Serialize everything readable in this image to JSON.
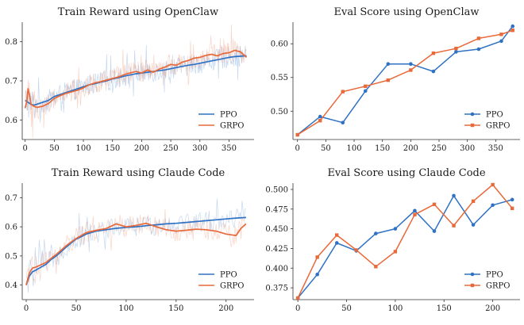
{
  "colors": {
    "PPO": "#2f72c4",
    "GRPO": "#e8693a"
  },
  "chart_data": [
    {
      "type": "line",
      "title": "Train Reward using OpenClaw",
      "xlim": [
        -5,
        393
      ],
      "ylim": [
        0.55,
        0.85
      ],
      "xticks": [
        0,
        50,
        100,
        150,
        200,
        250,
        300,
        350
      ],
      "yticks": [
        0.6,
        0.7,
        0.8
      ],
      "ytick_labels": [
        "0.6",
        "0.7",
        "0.8"
      ],
      "raw_noise": true,
      "legend": "bottom-right",
      "grid": false,
      "series": [
        {
          "name": "PPO",
          "marker": false,
          "x": [
            0,
            5,
            10,
            15,
            20,
            30,
            40,
            50,
            60,
            70,
            80,
            90,
            100,
            110,
            120,
            130,
            140,
            150,
            160,
            170,
            180,
            190,
            200,
            210,
            220,
            230,
            240,
            250,
            260,
            270,
            280,
            290,
            300,
            310,
            320,
            330,
            340,
            350,
            360,
            370,
            380
          ],
          "y": [
            0.65,
            0.645,
            0.64,
            0.638,
            0.64,
            0.645,
            0.65,
            0.66,
            0.665,
            0.67,
            0.675,
            0.68,
            0.685,
            0.69,
            0.693,
            0.697,
            0.7,
            0.705,
            0.708,
            0.712,
            0.715,
            0.718,
            0.72,
            0.722,
            0.724,
            0.726,
            0.728,
            0.731,
            0.734,
            0.737,
            0.74,
            0.742,
            0.745,
            0.748,
            0.751,
            0.754,
            0.757,
            0.76,
            0.762,
            0.763,
            0.764
          ]
        },
        {
          "name": "GRPO",
          "marker": false,
          "x": [
            0,
            3,
            5,
            8,
            10,
            15,
            20,
            30,
            40,
            50,
            60,
            70,
            80,
            90,
            100,
            110,
            120,
            130,
            140,
            150,
            160,
            170,
            180,
            190,
            200,
            210,
            220,
            230,
            240,
            250,
            260,
            270,
            280,
            290,
            300,
            310,
            320,
            330,
            340,
            350,
            360,
            370,
            380
          ],
          "y": [
            0.63,
            0.65,
            0.68,
            0.66,
            0.64,
            0.635,
            0.632,
            0.635,
            0.642,
            0.655,
            0.662,
            0.668,
            0.672,
            0.676,
            0.682,
            0.69,
            0.695,
            0.698,
            0.702,
            0.706,
            0.71,
            0.716,
            0.72,
            0.724,
            0.72,
            0.728,
            0.722,
            0.73,
            0.735,
            0.742,
            0.74,
            0.748,
            0.752,
            0.758,
            0.76,
            0.765,
            0.768,
            0.764,
            0.77,
            0.772,
            0.778,
            0.774,
            0.76
          ]
        }
      ]
    },
    {
      "type": "line",
      "title": "Eval Score using OpenClaw",
      "xlim": [
        -8,
        393
      ],
      "ylim": [
        0.458,
        0.632
      ],
      "xticks": [
        0,
        50,
        100,
        150,
        200,
        250,
        300,
        350
      ],
      "yticks": [
        0.5,
        0.55,
        0.6
      ],
      "ytick_labels": [
        "0.50",
        "0.55",
        "0.60"
      ],
      "raw_noise": false,
      "legend": "bottom-right",
      "grid": false,
      "series": [
        {
          "name": "PPO",
          "marker": "circle",
          "x": [
            0,
            40,
            80,
            120,
            160,
            200,
            240,
            280,
            320,
            360,
            380
          ],
          "y": [
            0.465,
            0.492,
            0.483,
            0.53,
            0.57,
            0.57,
            0.559,
            0.588,
            0.592,
            0.604,
            0.626
          ]
        },
        {
          "name": "GRPO",
          "marker": "square",
          "x": [
            0,
            40,
            80,
            120,
            160,
            200,
            240,
            280,
            320,
            360,
            380
          ],
          "y": [
            0.465,
            0.486,
            0.529,
            0.537,
            0.546,
            0.561,
            0.586,
            0.593,
            0.608,
            0.614,
            0.62
          ]
        }
      ]
    },
    {
      "type": "line",
      "title": "Train Reward using Claude Code",
      "xlim": [
        -4,
        228
      ],
      "ylim": [
        0.35,
        0.75
      ],
      "xticks": [
        0,
        50,
        100,
        150,
        200
      ],
      "yticks": [
        0.4,
        0.5,
        0.6,
        0.7
      ],
      "ytick_labels": [
        "0.4",
        "0.5",
        "0.6",
        "0.7"
      ],
      "raw_noise": true,
      "legend": "bottom-right",
      "grid": false,
      "series": [
        {
          "name": "PPO",
          "marker": false,
          "x": [
            0,
            3,
            6,
            10,
            15,
            20,
            25,
            30,
            35,
            40,
            45,
            50,
            55,
            60,
            70,
            80,
            90,
            100,
            110,
            120,
            130,
            140,
            150,
            160,
            170,
            180,
            190,
            200,
            210,
            220
          ],
          "y": [
            0.4,
            0.43,
            0.445,
            0.452,
            0.462,
            0.472,
            0.488,
            0.5,
            0.515,
            0.53,
            0.545,
            0.558,
            0.566,
            0.575,
            0.585,
            0.59,
            0.595,
            0.598,
            0.6,
            0.604,
            0.607,
            0.61,
            0.612,
            0.615,
            0.618,
            0.621,
            0.624,
            0.627,
            0.63,
            0.632
          ]
        },
        {
          "name": "GRPO",
          "marker": false,
          "x": [
            0,
            3,
            6,
            10,
            15,
            20,
            25,
            30,
            35,
            40,
            45,
            50,
            55,
            60,
            70,
            80,
            90,
            100,
            110,
            120,
            130,
            140,
            150,
            160,
            170,
            180,
            190,
            200,
            210,
            215,
            220
          ],
          "y": [
            0.4,
            0.44,
            0.458,
            0.462,
            0.47,
            0.478,
            0.492,
            0.505,
            0.52,
            0.535,
            0.548,
            0.56,
            0.57,
            0.58,
            0.588,
            0.594,
            0.61,
            0.6,
            0.605,
            0.612,
            0.6,
            0.59,
            0.585,
            0.588,
            0.592,
            0.59,
            0.585,
            0.575,
            0.57,
            0.595,
            0.61
          ]
        }
      ]
    },
    {
      "type": "line",
      "title": "Eval Score using Claude Code",
      "xlim": [
        -5,
        228
      ],
      "ylim": [
        0.36,
        0.508
      ],
      "xticks": [
        0,
        50,
        100,
        150,
        200
      ],
      "yticks": [
        0.375,
        0.4,
        0.425,
        0.45,
        0.475,
        0.5
      ],
      "ytick_labels": [
        "0.375",
        "0.400",
        "0.425",
        "0.450",
        "0.475",
        "0.500"
      ],
      "raw_noise": false,
      "legend": "bottom-right",
      "grid": false,
      "series": [
        {
          "name": "PPO",
          "marker": "circle",
          "x": [
            0,
            20,
            40,
            60,
            80,
            100,
            120,
            140,
            160,
            180,
            200,
            220
          ],
          "y": [
            0.362,
            0.392,
            0.432,
            0.422,
            0.444,
            0.45,
            0.473,
            0.447,
            0.492,
            0.455,
            0.48,
            0.487
          ]
        },
        {
          "name": "GRPO",
          "marker": "square",
          "x": [
            0,
            20,
            40,
            60,
            80,
            100,
            120,
            140,
            160,
            180,
            200,
            220
          ],
          "y": [
            0.362,
            0.414,
            0.442,
            0.423,
            0.402,
            0.421,
            0.468,
            0.481,
            0.454,
            0.485,
            0.506,
            0.476
          ]
        }
      ]
    }
  ]
}
